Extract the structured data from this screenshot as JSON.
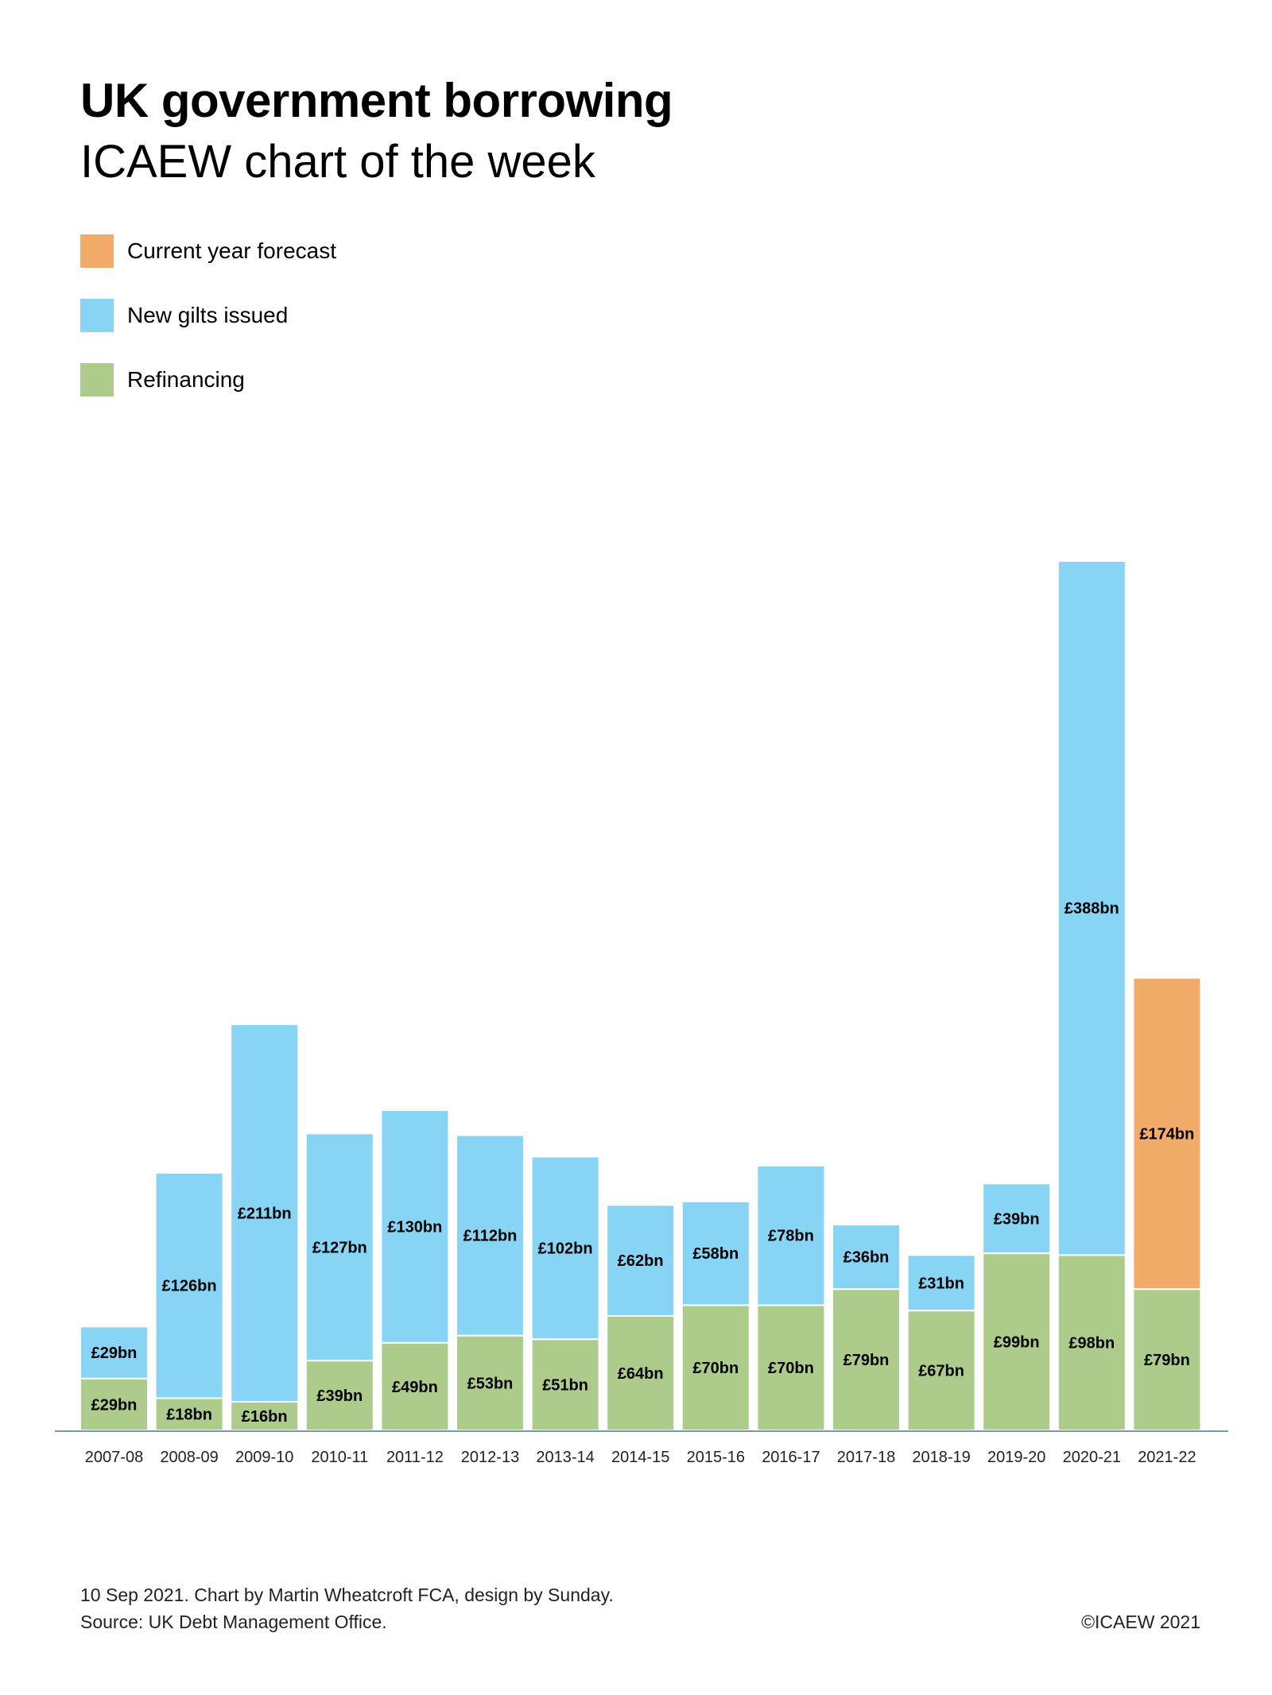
{
  "header": {
    "title": "UK government borrowing",
    "subtitle": "ICAEW chart of the week"
  },
  "legend": [
    {
      "label": "Current year forecast",
      "color": "#F2AC6A"
    },
    {
      "label": "New gilts issued",
      "color": "#87D4F5"
    },
    {
      "label": "Refinancing",
      "color": "#ADCC8C"
    }
  ],
  "chart_data": {
    "type": "bar",
    "stacked": true,
    "title": "UK government borrowing",
    "categories": [
      "2007-08",
      "2008-09",
      "2009-10",
      "2010-11",
      "2011-12",
      "2012-13",
      "2013-14",
      "2014-15",
      "2015-16",
      "2016-17",
      "2017-18",
      "2018-19",
      "2019-20",
      "2020-21",
      "2021-22"
    ],
    "series": [
      {
        "name": "Refinancing",
        "color": "#ADCC8C",
        "values": [
          29,
          18,
          16,
          39,
          49,
          53,
          51,
          64,
          70,
          70,
          79,
          67,
          99,
          98,
          79
        ]
      },
      {
        "name": "New gilts issued",
        "color": "#87D4F5",
        "values": [
          29,
          126,
          211,
          127,
          130,
          112,
          102,
          62,
          58,
          78,
          36,
          31,
          39,
          388,
          null
        ]
      },
      {
        "name": "Current year forecast",
        "color": "#F2AC6A",
        "values": [
          null,
          null,
          null,
          null,
          null,
          null,
          null,
          null,
          null,
          null,
          null,
          null,
          null,
          null,
          174
        ]
      }
    ],
    "value_labels": {
      "Refinancing": [
        "£29bn",
        "£18bn",
        "£16bn",
        "£39bn",
        "£49bn",
        "£53bn",
        "£51bn",
        "£64bn",
        "£70bn",
        "£70bn",
        "£79bn",
        "£67bn",
        "£99bn",
        "£98bn",
        "£79bn"
      ],
      "New gilts issued": [
        "£29bn",
        "£126bn",
        "£211bn",
        "£127bn",
        "£130bn",
        "£112bn",
        "£102bn",
        "£62bn",
        "£58bn",
        "£78bn",
        "£36bn",
        "£31bn",
        "£39bn",
        "£388bn",
        null
      ],
      "Current year forecast": [
        null,
        null,
        null,
        null,
        null,
        null,
        null,
        null,
        null,
        null,
        null,
        null,
        null,
        null,
        "£174bn"
      ]
    },
    "xlabel": "",
    "ylabel": "",
    "ylim": [
      0,
      486
    ],
    "grid": false,
    "legend_position": "top-left"
  },
  "footer": {
    "line1": "10 Sep 2021.   Chart by Martin Wheatcroft FCA, design by Sunday.",
    "line2": "Source: UK Debt Management Office.",
    "copyright": "©ICAEW 2021"
  }
}
